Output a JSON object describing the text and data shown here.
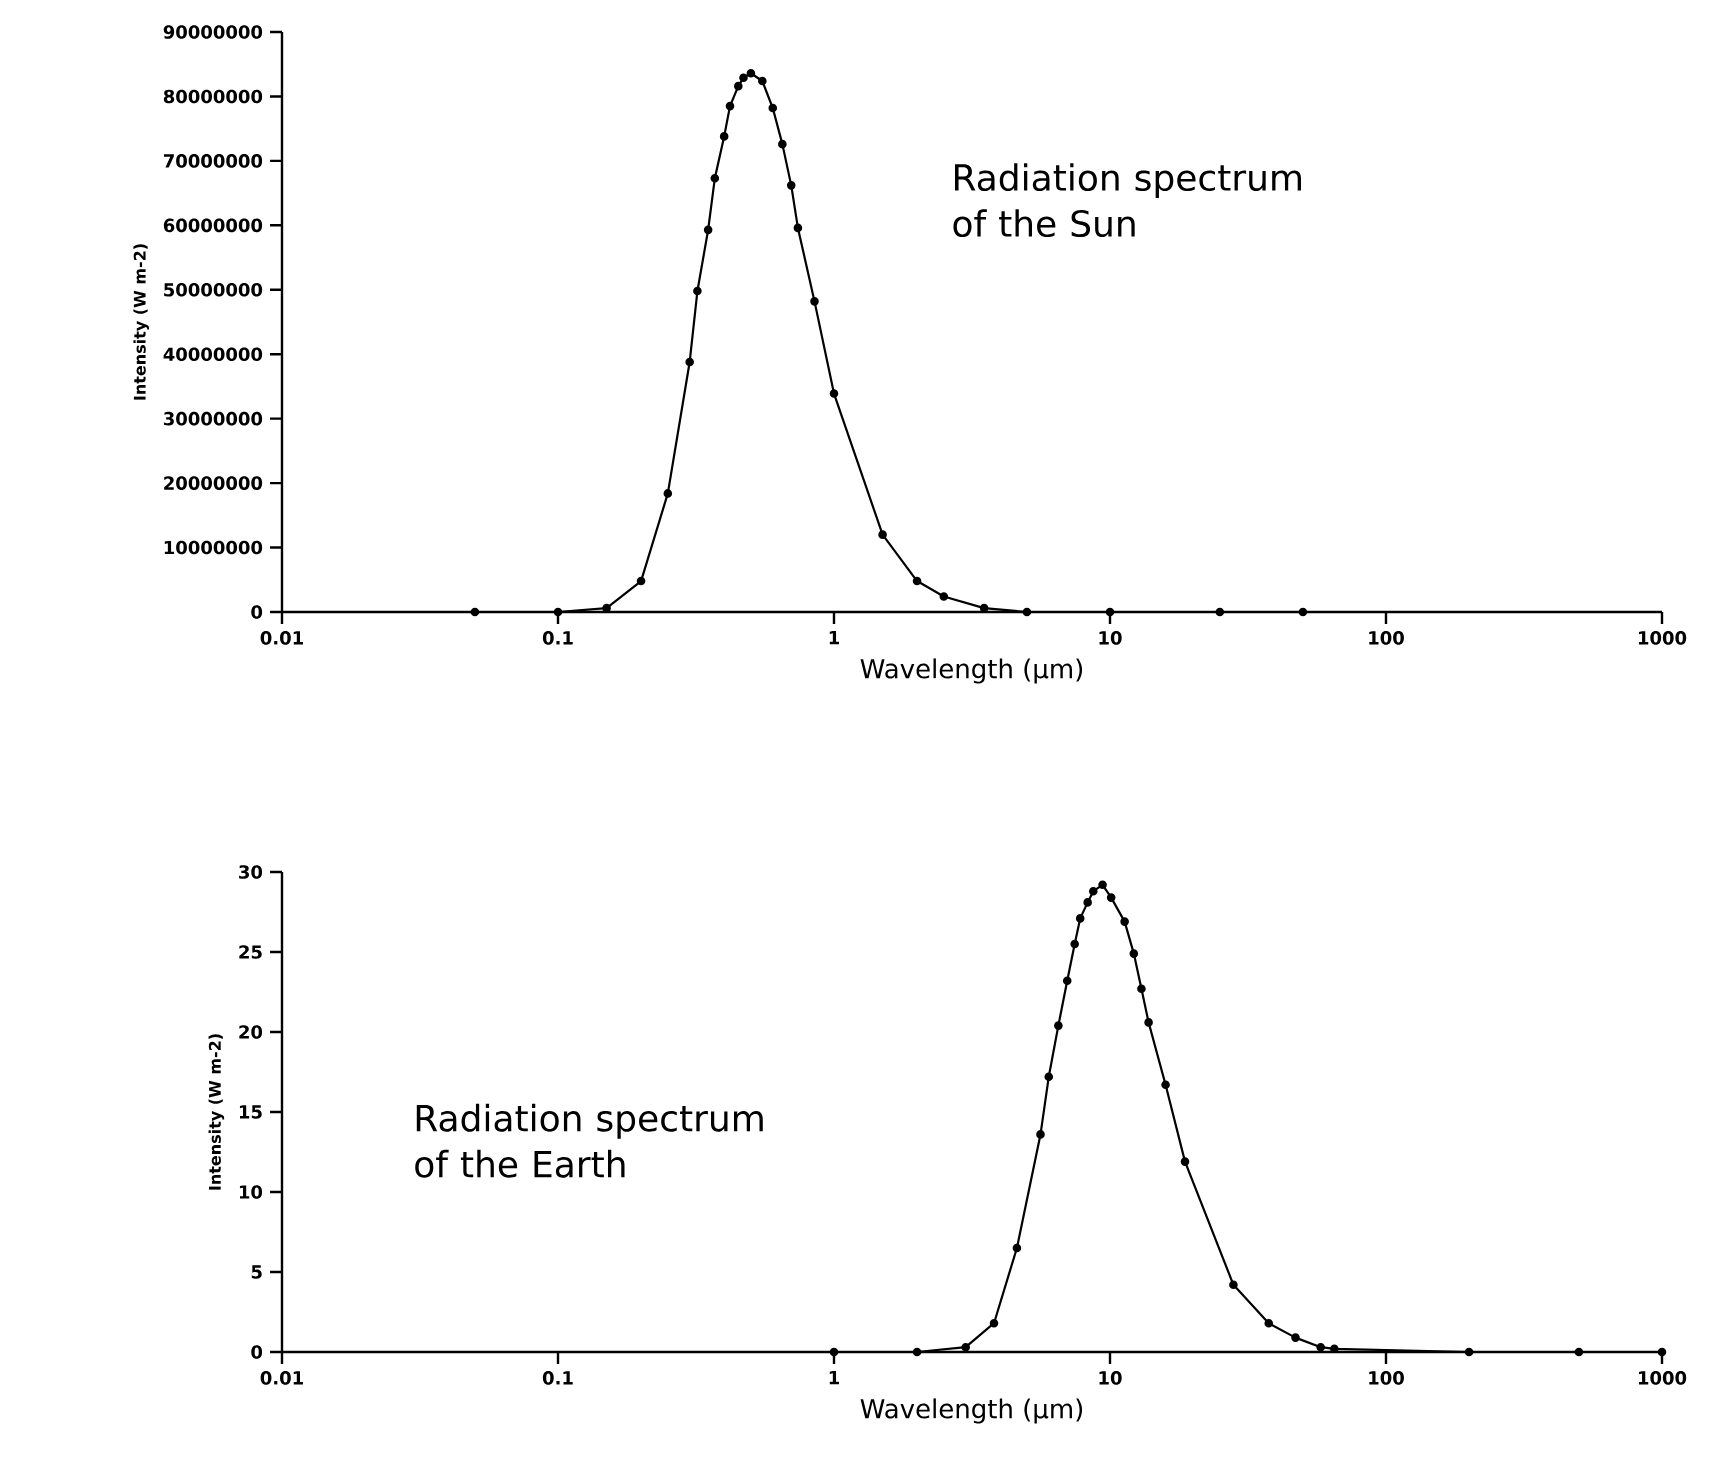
{
  "chart_data": [
    {
      "type": "line",
      "log": "x",
      "marker": "circle",
      "line_style": "solid",
      "color": "#000000",
      "x": [
        0.05,
        0.1,
        0.15,
        0.2,
        0.25,
        0.3,
        0.32,
        0.35,
        0.37,
        0.4,
        0.42,
        0.45,
        0.47,
        0.5,
        0.55,
        0.6,
        0.65,
        0.7,
        0.74,
        0.85,
        1,
        1.5,
        2,
        2.5,
        3.5,
        5,
        10,
        25,
        50
      ],
      "values": [
        0,
        0,
        600000,
        4800000,
        18400000,
        38800000,
        49800000,
        59300000,
        67300000,
        73800000,
        78500000,
        81600000,
        82900000,
        83600000,
        82400000,
        78200000,
        72600000,
        66200000,
        59600000,
        48200000,
        33900000,
        12000000,
        4800000,
        2400000,
        600000,
        0,
        0,
        0,
        0
      ],
      "xlim": [
        0.01,
        1000
      ],
      "ylim": [
        0,
        90000000
      ],
      "xticks": [
        0.01,
        0.1,
        1,
        10,
        100,
        1000
      ],
      "yticks": [
        0,
        10000000,
        20000000,
        30000000,
        40000000,
        50000000,
        60000000,
        70000000,
        80000000,
        90000000
      ],
      "xlabel": "Wavelength (μm)",
      "ylabel": "Intensity (W m-2)",
      "annotations": [
        "Radiation spectrum of the Sun"
      ]
    },
    {
      "type": "line",
      "log": "x",
      "marker": "circle",
      "line_style": "solid",
      "color": "#000000",
      "x": [
        1,
        2,
        3,
        3.8,
        4.6,
        5.6,
        6,
        6.5,
        7,
        7.45,
        7.8,
        8.3,
        8.7,
        9.4,
        10.1,
        11.3,
        12.2,
        13,
        13.8,
        15.9,
        18.7,
        28,
        37.6,
        47,
        58,
        65,
        200,
        500,
        1000
      ],
      "values": [
        0,
        0,
        0.3,
        1.8,
        6.5,
        13.6,
        17.2,
        20.4,
        23.2,
        25.5,
        27.1,
        28.1,
        28.8,
        29.2,
        28.4,
        26.9,
        24.9,
        22.7,
        20.6,
        16.7,
        11.9,
        4.2,
        1.8,
        0.9,
        0.3,
        0.2,
        0,
        0,
        0
      ],
      "xlim": [
        0.01,
        1000
      ],
      "ylim": [
        0,
        30
      ],
      "xticks": [
        0.01,
        0.1,
        1,
        10,
        100,
        1000
      ],
      "yticks": [
        0,
        5,
        10,
        15,
        20,
        25,
        30
      ],
      "xlabel": "Wavelength (μm)",
      "ylabel": "Intensity (W m-2)",
      "annotations": [
        "Radiation spectrum of the Earth"
      ]
    }
  ]
}
